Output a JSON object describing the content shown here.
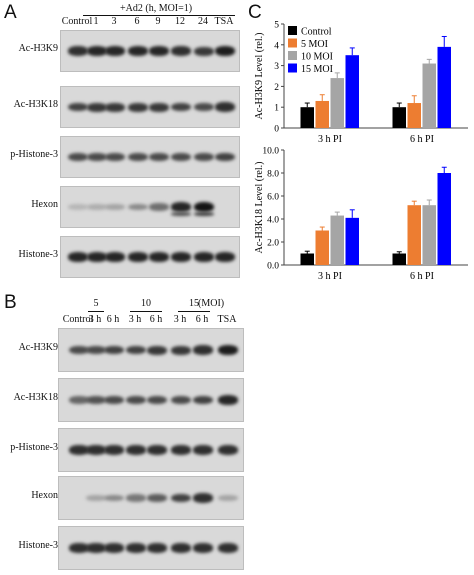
{
  "panels": {
    "a": "A",
    "b": "B",
    "c": "C"
  },
  "panel_a": {
    "header": "+Ad2 (h, MOI=1)",
    "lanes": [
      "Control",
      "1",
      "3",
      "6",
      "9",
      "12",
      "24",
      "TSA"
    ],
    "rows": [
      "Ac-H3K9",
      "Ac-H3K18",
      "p-Histone-3",
      "Hexon",
      "Histone-3"
    ]
  },
  "panel_b": {
    "groups": [
      "5",
      "10",
      "15",
      "(MOI)"
    ],
    "lanes": [
      "Control",
      "3 h",
      "6 h",
      "3 h",
      "6 h",
      "3 h",
      "6 h",
      "TSA"
    ],
    "rows": [
      "Ac-H3K9",
      "Ac-H3K18",
      "p-Histone-3",
      "Hexon",
      "Histone-3"
    ]
  },
  "chart_data": [
    {
      "type": "bar",
      "ylabel": "Ac-H3K9 Level (rel.)",
      "categories": [
        "3 h PI",
        "6 h PI"
      ],
      "ylim": [
        0,
        5
      ],
      "yticks": [
        "0",
        "1",
        "2",
        "3",
        "4",
        "5"
      ],
      "series": [
        {
          "name": "Control",
          "color": "#000000",
          "values": [
            1.0,
            1.0
          ],
          "errors": [
            0.2,
            0.2
          ]
        },
        {
          "name": "5 MOI",
          "color": "#ed7d31",
          "values": [
            1.3,
            1.2
          ],
          "errors": [
            0.3,
            0.35
          ]
        },
        {
          "name": "10 MOI",
          "color": "#a5a5a5",
          "values": [
            2.4,
            3.1
          ],
          "errors": [
            0.25,
            0.2
          ]
        },
        {
          "name": "15 MOI",
          "color": "#0000ff",
          "values": [
            3.5,
            3.9
          ],
          "errors": [
            0.35,
            0.5
          ]
        }
      ],
      "legend": "top-left"
    },
    {
      "type": "bar",
      "ylabel": "Ac-H3K18 Level (rel.)",
      "categories": [
        "3 h PI",
        "6 h PI"
      ],
      "ylim": [
        0,
        10
      ],
      "yticks": [
        "0.0",
        "2.0",
        "4.0",
        "6.0",
        "8.0",
        "10.0"
      ],
      "series": [
        {
          "name": "Control",
          "color": "#000000",
          "values": [
            1.0,
            1.0
          ],
          "errors": [
            0.2,
            0.15
          ]
        },
        {
          "name": "5 MOI",
          "color": "#ed7d31",
          "values": [
            3.0,
            5.2
          ],
          "errors": [
            0.3,
            0.35
          ]
        },
        {
          "name": "10 MOI",
          "color": "#a5a5a5",
          "values": [
            4.3,
            5.2
          ],
          "errors": [
            0.3,
            0.45
          ]
        },
        {
          "name": "15 MOI",
          "color": "#0000ff",
          "values": [
            4.1,
            8.0
          ],
          "errors": [
            0.7,
            0.5
          ]
        }
      ]
    }
  ],
  "bands": {
    "a": [
      [
        0.85,
        0.9,
        0.9,
        0.9,
        0.9,
        0.85,
        0.8,
        0.95
      ],
      [
        0.75,
        0.8,
        0.8,
        0.8,
        0.8,
        0.75,
        0.7,
        0.85
      ],
      [
        0.7,
        0.7,
        0.7,
        0.7,
        0.7,
        0.7,
        0.7,
        0.75
      ],
      [
        0.1,
        0.15,
        0.2,
        0.35,
        0.5,
        0.9,
        1.0,
        0.0
      ],
      [
        0.9,
        0.9,
        0.9,
        0.9,
        0.9,
        0.9,
        0.9,
        0.9
      ]
    ],
    "b": [
      [
        0.7,
        0.7,
        0.75,
        0.75,
        0.8,
        0.8,
        0.85,
        0.95
      ],
      [
        0.55,
        0.65,
        0.7,
        0.7,
        0.7,
        0.7,
        0.75,
        0.9
      ],
      [
        0.85,
        0.85,
        0.85,
        0.85,
        0.85,
        0.85,
        0.85,
        0.85
      ],
      [
        0.0,
        0.2,
        0.35,
        0.45,
        0.6,
        0.75,
        0.85,
        0.2
      ],
      [
        0.85,
        0.85,
        0.85,
        0.85,
        0.85,
        0.85,
        0.85,
        0.85
      ]
    ]
  }
}
